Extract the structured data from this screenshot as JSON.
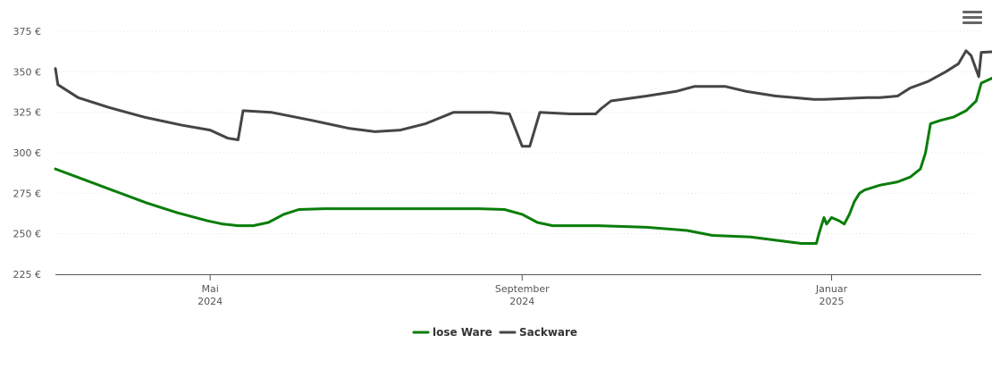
{
  "chart_data": {
    "type": "line",
    "title": "",
    "xlabel": "",
    "ylabel": "",
    "ylim": [
      225,
      375
    ],
    "y_ticks": [
      {
        "value": 225,
        "label": "225 €"
      },
      {
        "value": 250,
        "label": "250 €"
      },
      {
        "value": 275,
        "label": "275 €"
      },
      {
        "value": 300,
        "label": "300 €"
      },
      {
        "value": 325,
        "label": "325 €"
      },
      {
        "value": 350,
        "label": "350 €"
      },
      {
        "value": 375,
        "label": "375 €"
      }
    ],
    "xlim": [
      "2024-03-01",
      "2025-03-01"
    ],
    "x_ticks": [
      {
        "value": "2024-05-01",
        "label": "Mai",
        "sublabel": "2024"
      },
      {
        "value": "2024-09-01",
        "label": "September",
        "sublabel": "2024"
      },
      {
        "value": "2025-01-01",
        "label": "Januar",
        "sublabel": "2025"
      }
    ],
    "grid": "horizontal dotted",
    "legend_position": "bottom-center",
    "series": [
      {
        "name": "lose Ware",
        "color": "#0a7d0a",
        "points": [
          [
            "2024-03-01",
            290
          ],
          [
            "2024-03-13",
            283
          ],
          [
            "2024-03-25",
            276
          ],
          [
            "2024-04-06",
            269
          ],
          [
            "2024-04-18",
            263
          ],
          [
            "2024-04-30",
            258
          ],
          [
            "2024-05-06",
            256
          ],
          [
            "2024-05-12",
            255
          ],
          [
            "2024-05-18",
            255
          ],
          [
            "2024-05-24",
            257
          ],
          [
            "2024-05-30",
            262
          ],
          [
            "2024-06-05",
            265
          ],
          [
            "2024-06-15",
            265.5
          ],
          [
            "2024-07-15",
            265.5
          ],
          [
            "2024-08-15",
            265.5
          ],
          [
            "2024-08-25",
            265
          ],
          [
            "2024-09-01",
            262
          ],
          [
            "2024-09-07",
            257
          ],
          [
            "2024-09-13",
            255
          ],
          [
            "2024-10-01",
            255
          ],
          [
            "2024-10-20",
            254
          ],
          [
            "2024-11-05",
            252
          ],
          [
            "2024-11-15",
            249
          ],
          [
            "2024-11-30",
            248
          ],
          [
            "2024-12-10",
            246
          ],
          [
            "2024-12-20",
            244
          ],
          [
            "2024-12-26",
            244
          ],
          [
            "2024-12-27",
            250
          ],
          [
            "2024-12-29",
            260
          ],
          [
            "2024-12-30",
            256
          ],
          [
            "2025-01-01",
            260
          ],
          [
            "2025-01-04",
            258
          ],
          [
            "2025-01-06",
            256
          ],
          [
            "2025-01-08",
            262
          ],
          [
            "2025-01-10",
            270
          ],
          [
            "2025-01-12",
            275
          ],
          [
            "2025-01-14",
            277
          ],
          [
            "2025-01-20",
            280
          ],
          [
            "2025-01-27",
            282
          ],
          [
            "2025-02-01",
            285
          ],
          [
            "2025-02-05",
            290
          ],
          [
            "2025-02-07",
            300
          ],
          [
            "2025-02-09",
            318
          ],
          [
            "2025-02-13",
            320
          ],
          [
            "2025-02-18",
            322
          ],
          [
            "2025-02-23",
            326
          ],
          [
            "2025-02-27",
            332
          ],
          [
            "2025-03-01",
            343
          ],
          [
            "2025-03-08",
            348
          ],
          [
            "2025-03-15",
            353
          ]
        ]
      },
      {
        "name": "Sackware",
        "color": "#454545",
        "points": [
          [
            "2024-03-01",
            352
          ],
          [
            "2024-03-02",
            342
          ],
          [
            "2024-03-10",
            334
          ],
          [
            "2024-03-22",
            328
          ],
          [
            "2024-04-05",
            322
          ],
          [
            "2024-04-20",
            317
          ],
          [
            "2024-05-01",
            314
          ],
          [
            "2024-05-08",
            309
          ],
          [
            "2024-05-12",
            308
          ],
          [
            "2024-05-14",
            326
          ],
          [
            "2024-05-25",
            325
          ],
          [
            "2024-06-10",
            320
          ],
          [
            "2024-06-25",
            315
          ],
          [
            "2024-07-05",
            313
          ],
          [
            "2024-07-15",
            314
          ],
          [
            "2024-07-25",
            318
          ],
          [
            "2024-08-05",
            325
          ],
          [
            "2024-08-20",
            325
          ],
          [
            "2024-08-27",
            324
          ],
          [
            "2024-09-01",
            304
          ],
          [
            "2024-09-04",
            304
          ],
          [
            "2024-09-08",
            325
          ],
          [
            "2024-09-20",
            324
          ],
          [
            "2024-09-30",
            324
          ],
          [
            "2024-10-02",
            327
          ],
          [
            "2024-10-06",
            332
          ],
          [
            "2024-10-20",
            335
          ],
          [
            "2024-11-01",
            338
          ],
          [
            "2024-11-08",
            341
          ],
          [
            "2024-11-20",
            341
          ],
          [
            "2024-11-28",
            338
          ],
          [
            "2024-12-10",
            335
          ],
          [
            "2024-12-25",
            333
          ],
          [
            "2024-12-29",
            333
          ],
          [
            "2025-01-15",
            334
          ],
          [
            "2025-01-20",
            334
          ],
          [
            "2025-01-27",
            335
          ],
          [
            "2025-02-01",
            340
          ],
          [
            "2025-02-08",
            344
          ],
          [
            "2025-02-15",
            350
          ],
          [
            "2025-02-20",
            355
          ],
          [
            "2025-02-23",
            363
          ],
          [
            "2025-02-25",
            360
          ],
          [
            "2025-02-28",
            347
          ],
          [
            "2025-03-01",
            362
          ],
          [
            "2025-03-15",
            363
          ]
        ]
      }
    ]
  },
  "menu": {
    "icon": "hamburger-menu-icon"
  }
}
